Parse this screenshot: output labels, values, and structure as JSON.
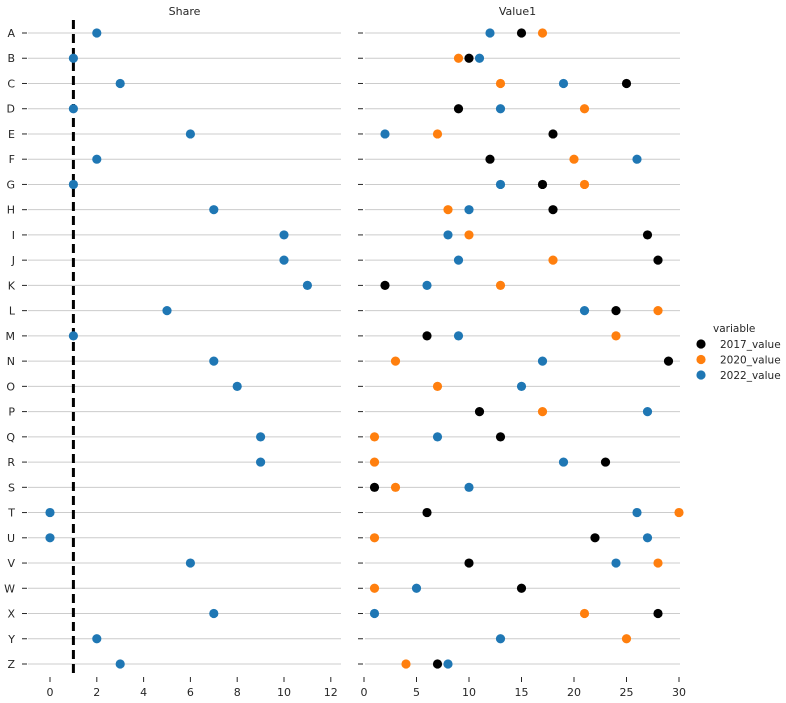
{
  "chart_data": {
    "type": "scatter",
    "categories": [
      "A",
      "B",
      "C",
      "D",
      "E",
      "F",
      "G",
      "H",
      "I",
      "J",
      "K",
      "L",
      "M",
      "N",
      "O",
      "P",
      "Q",
      "R",
      "S",
      "T",
      "U",
      "V",
      "W",
      "X",
      "Y",
      "Z"
    ],
    "panels": [
      {
        "title": "Share",
        "xlim": [
          -1,
          12.3
        ],
        "xticks": [
          "0",
          "2",
          "4",
          "6",
          "8",
          "10",
          "12"
        ],
        "reference_line": 1,
        "series": [
          {
            "name": "2022_value",
            "color": "#1f77b4",
            "values": [
              2,
              1,
              3,
              1,
              6,
              2,
              1,
              7,
              10,
              10,
              11,
              5,
              1,
              7,
              8,
              null,
              9,
              9,
              null,
              0,
              0,
              6,
              null,
              7,
              2,
              3
            ]
          }
        ]
      },
      {
        "title": "Value1",
        "xlim": [
          0,
          30
        ],
        "xticks": [
          "0",
          "5",
          "10",
          "15",
          "20",
          "25",
          "30"
        ],
        "series": [
          {
            "name": "2017_value",
            "color": "#000000",
            "values": [
              15,
              10,
              25,
              9,
              18,
              12,
              17,
              18,
              27,
              28,
              2,
              24,
              6,
              29,
              null,
              11,
              13,
              23,
              1,
              6,
              22,
              10,
              15,
              28,
              null,
              7
            ]
          },
          {
            "name": "2020_value",
            "color": "#ff7f0e",
            "values": [
              17,
              9,
              13,
              21,
              7,
              20,
              21,
              8,
              10,
              18,
              13,
              28,
              24,
              3,
              7,
              17,
              1,
              1,
              3,
              30,
              1,
              28,
              1,
              21,
              25,
              4
            ]
          },
          {
            "name": "2022_value",
            "color": "#1f77b4",
            "values": [
              12,
              11,
              19,
              13,
              2,
              26,
              13,
              10,
              8,
              9,
              6,
              21,
              9,
              17,
              15,
              27,
              7,
              19,
              10,
              26,
              27,
              24,
              5,
              1,
              13,
              8
            ]
          }
        ]
      }
    ],
    "legend": {
      "title": "variable",
      "placement": "right",
      "entries": [
        {
          "label": "2017_value",
          "color": "#000000"
        },
        {
          "label": "2020_value",
          "color": "#ff7f0e"
        },
        {
          "label": "2022_value",
          "color": "#1f77b4"
        }
      ]
    }
  }
}
